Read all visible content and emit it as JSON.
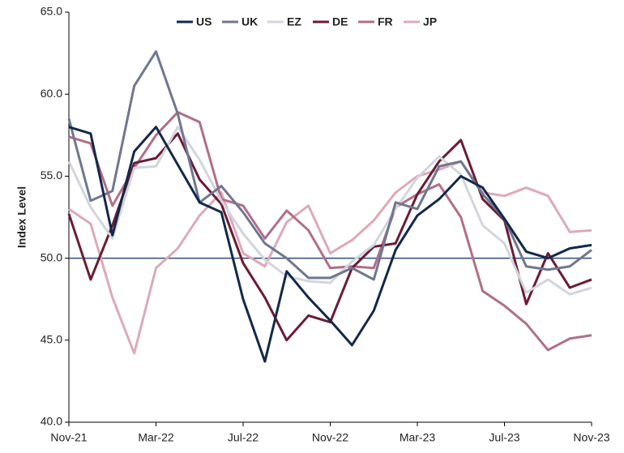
{
  "chart_data": {
    "type": "line",
    "y_label": "Index Level",
    "categories": [
      "Nov-21",
      null,
      null,
      null,
      "Mar-22",
      null,
      null,
      null,
      "Jul-22",
      null,
      null,
      null,
      "Nov-22",
      null,
      null,
      null,
      "Mar-23",
      null,
      null,
      null,
      "Jul-23",
      null,
      null,
      null,
      "Nov-23"
    ],
    "series": [
      {
        "name": "US",
        "color": "#13284a",
        "values": [
          58.0,
          57.6,
          51.4,
          56.5,
          58.0,
          55.7,
          53.4,
          52.8,
          47.5,
          43.7,
          49.2,
          47.6,
          46.2,
          44.7,
          46.8,
          50.5,
          52.6,
          53.6,
          55.0,
          54.3,
          52.4,
          50.4,
          50.0,
          50.6,
          50.8
        ]
      },
      {
        "name": "UK",
        "color": "#6f7790",
        "values": [
          58.5,
          53.5,
          54.1,
          60.5,
          62.6,
          58.8,
          53.4,
          54.4,
          52.8,
          50.9,
          50.0,
          48.8,
          48.8,
          49.4,
          48.7,
          53.4,
          53.0,
          55.6,
          55.9,
          53.9,
          52.4,
          49.5,
          49.3,
          49.5,
          50.5
        ]
      },
      {
        "name": "EZ",
        "color": "#d3d5de",
        "values": [
          55.9,
          53.1,
          51.2,
          55.5,
          55.6,
          58.0,
          56.0,
          53.5,
          51.5,
          49.9,
          48.9,
          48.6,
          48.5,
          49.8,
          50.8,
          53.0,
          54.9,
          56.2,
          55.1,
          52.0,
          50.9,
          47.9,
          48.7,
          47.8,
          48.2
        ]
      },
      {
        "name": "DE",
        "color": "#6b1c35",
        "values": [
          52.7,
          48.7,
          52.0,
          55.8,
          56.1,
          57.6,
          54.8,
          53.3,
          49.7,
          47.6,
          45.0,
          46.5,
          46.1,
          49.4,
          50.7,
          50.9,
          53.9,
          55.9,
          57.2,
          53.6,
          52.3,
          47.2,
          50.3,
          48.2,
          48.7
        ]
      },
      {
        "name": "FR",
        "color": "#b06f88",
        "values": [
          57.4,
          57.0,
          53.2,
          55.5,
          57.5,
          58.9,
          58.3,
          53.6,
          53.2,
          51.2,
          52.9,
          51.7,
          49.4,
          49.5,
          49.4,
          53.1,
          53.9,
          54.5,
          52.5,
          48.0,
          47.1,
          46.0,
          44.4,
          45.1,
          45.3
        ]
      },
      {
        "name": "JP",
        "color": "#dcaab7",
        "values": [
          53.0,
          52.1,
          47.6,
          44.2,
          49.4,
          50.6,
          52.6,
          54.0,
          50.3,
          49.5,
          52.2,
          53.2,
          50.3,
          51.1,
          52.3,
          54.0,
          55.0,
          55.4,
          55.9,
          54.0,
          53.8,
          54.3,
          53.8,
          51.6,
          51.7
        ]
      }
    ],
    "ylim": [
      40,
      65
    ],
    "yticks": [
      {
        "value": 40,
        "label": "40.0"
      },
      {
        "value": 45,
        "label": "45.0"
      },
      {
        "value": 50,
        "label": "50.0"
      },
      {
        "value": 55,
        "label": "55.0"
      },
      {
        "value": 60,
        "label": "60.0"
      },
      {
        "value": 65,
        "label": "65.0"
      }
    ],
    "reference_line": {
      "value": 50,
      "color": "#2f4b7c"
    },
    "grid": false,
    "legend": "top"
  }
}
